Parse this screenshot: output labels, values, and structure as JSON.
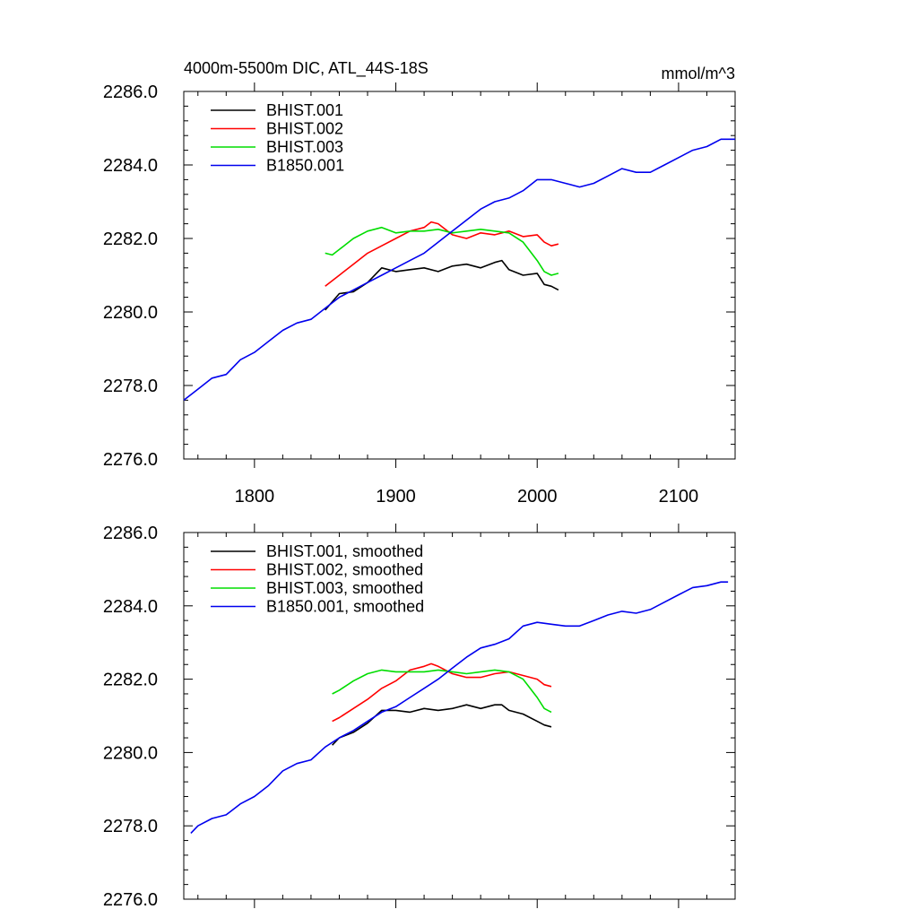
{
  "chart_data": [
    {
      "type": "line",
      "title": "4000m-5500m DIC, ATL_44S-18S",
      "units_label": "mmol/m^3",
      "xlim": [
        1750,
        2140
      ],
      "ylim": [
        2276,
        2286
      ],
      "x_ticks": [
        1800,
        1900,
        2000,
        2100
      ],
      "x_tick_labels": [
        "1800",
        "1900",
        "2000",
        "2100"
      ],
      "y_ticks": [
        2276,
        2278,
        2280,
        2282,
        2284,
        2286
      ],
      "y_tick_labels": [
        "2276.0",
        "2278.0",
        "2280.0",
        "2282.0",
        "2284.0",
        "2286.0"
      ],
      "legend_position": "top-left",
      "series": [
        {
          "name": "BHIST.001",
          "color": "#000000",
          "x": [
            1850,
            1860,
            1870,
            1880,
            1890,
            1900,
            1910,
            1920,
            1930,
            1940,
            1950,
            1960,
            1970,
            1975,
            1980,
            1990,
            2000,
            2005,
            2010,
            2015
          ],
          "values": [
            2280.05,
            2280.5,
            2280.55,
            2280.8,
            2281.2,
            2281.1,
            2281.15,
            2281.2,
            2281.1,
            2281.25,
            2281.3,
            2281.2,
            2281.35,
            2281.4,
            2281.15,
            2281.0,
            2281.05,
            2280.75,
            2280.7,
            2280.6
          ]
        },
        {
          "name": "BHIST.002",
          "color": "#ff0000",
          "x": [
            1850,
            1860,
            1870,
            1880,
            1890,
            1900,
            1910,
            1920,
            1925,
            1930,
            1940,
            1950,
            1960,
            1970,
            1980,
            1990,
            2000,
            2005,
            2010,
            2015
          ],
          "values": [
            2280.7,
            2281.0,
            2281.3,
            2281.6,
            2281.8,
            2282.0,
            2282.2,
            2282.3,
            2282.45,
            2282.4,
            2282.1,
            2282.0,
            2282.15,
            2282.1,
            2282.2,
            2282.05,
            2282.1,
            2281.9,
            2281.8,
            2281.85
          ]
        },
        {
          "name": "BHIST.003",
          "color": "#00dd00",
          "x": [
            1850,
            1855,
            1860,
            1870,
            1880,
            1890,
            1900,
            1910,
            1920,
            1930,
            1940,
            1950,
            1960,
            1970,
            1980,
            1990,
            2000,
            2005,
            2010,
            2015
          ],
          "values": [
            2281.6,
            2281.55,
            2281.7,
            2282.0,
            2282.2,
            2282.3,
            2282.15,
            2282.2,
            2282.2,
            2282.25,
            2282.15,
            2282.2,
            2282.25,
            2282.2,
            2282.15,
            2281.9,
            2281.4,
            2281.1,
            2281.0,
            2281.05
          ]
        },
        {
          "name": "B1850.001",
          "color": "#0000ee",
          "x": [
            1750,
            1760,
            1770,
            1780,
            1790,
            1800,
            1810,
            1820,
            1830,
            1840,
            1850,
            1860,
            1870,
            1880,
            1890,
            1900,
            1910,
            1920,
            1930,
            1940,
            1950,
            1960,
            1970,
            1980,
            1990,
            2000,
            2010,
            2020,
            2030,
            2040,
            2050,
            2060,
            2070,
            2080,
            2090,
            2100,
            2110,
            2120,
            2130,
            2140
          ],
          "values": [
            2277.6,
            2277.9,
            2278.2,
            2278.3,
            2278.7,
            2278.9,
            2279.2,
            2279.5,
            2279.7,
            2279.8,
            2280.1,
            2280.4,
            2280.6,
            2280.8,
            2281.0,
            2281.2,
            2281.4,
            2281.6,
            2281.9,
            2282.2,
            2282.5,
            2282.8,
            2283.0,
            2283.1,
            2283.3,
            2283.6,
            2283.6,
            2283.5,
            2283.4,
            2283.5,
            2283.7,
            2283.9,
            2283.8,
            2283.8,
            2284.0,
            2284.2,
            2284.4,
            2284.5,
            2284.7,
            2284.7
          ]
        }
      ]
    },
    {
      "type": "line",
      "title": "",
      "units_label": "",
      "xlim": [
        1750,
        2140
      ],
      "ylim": [
        2276,
        2286
      ],
      "x_ticks": [
        1800,
        1900,
        2000,
        2100
      ],
      "x_tick_labels": [],
      "y_ticks": [
        2276,
        2278,
        2280,
        2282,
        2284,
        2286
      ],
      "y_tick_labels": [
        "2276.0",
        "2278.0",
        "2280.0",
        "2282.0",
        "2284.0",
        "2286.0"
      ],
      "legend_position": "top-left",
      "series": [
        {
          "name": "BHIST.001, smoothed",
          "color": "#000000",
          "x": [
            1855,
            1860,
            1870,
            1880,
            1890,
            1900,
            1910,
            1920,
            1930,
            1940,
            1950,
            1960,
            1970,
            1975,
            1980,
            1990,
            2000,
            2005,
            2010
          ],
          "values": [
            2280.2,
            2280.4,
            2280.55,
            2280.8,
            2281.15,
            2281.15,
            2281.1,
            2281.2,
            2281.15,
            2281.2,
            2281.3,
            2281.2,
            2281.3,
            2281.3,
            2281.15,
            2281.05,
            2280.85,
            2280.75,
            2280.7
          ]
        },
        {
          "name": "BHIST.002, smoothed",
          "color": "#ff0000",
          "x": [
            1855,
            1860,
            1870,
            1880,
            1890,
            1900,
            1910,
            1920,
            1925,
            1930,
            1940,
            1950,
            1960,
            1970,
            1980,
            1990,
            2000,
            2005,
            2010
          ],
          "values": [
            2280.85,
            2280.95,
            2281.2,
            2281.45,
            2281.75,
            2281.95,
            2282.25,
            2282.35,
            2282.42,
            2282.35,
            2282.15,
            2282.05,
            2282.05,
            2282.15,
            2282.2,
            2282.1,
            2282.0,
            2281.85,
            2281.8
          ]
        },
        {
          "name": "BHIST.003, smoothed",
          "color": "#00dd00",
          "x": [
            1855,
            1860,
            1870,
            1880,
            1890,
            1900,
            1910,
            1920,
            1930,
            1940,
            1950,
            1960,
            1970,
            1980,
            1990,
            2000,
            2005,
            2010
          ],
          "values": [
            2281.6,
            2281.7,
            2281.95,
            2282.15,
            2282.25,
            2282.2,
            2282.2,
            2282.2,
            2282.25,
            2282.2,
            2282.15,
            2282.2,
            2282.25,
            2282.2,
            2282.0,
            2281.5,
            2281.2,
            2281.1
          ]
        },
        {
          "name": "B1850.001, smoothed",
          "color": "#0000ee",
          "x": [
            1755,
            1760,
            1770,
            1780,
            1790,
            1800,
            1810,
            1820,
            1830,
            1840,
            1850,
            1860,
            1870,
            1880,
            1890,
            1900,
            1910,
            1920,
            1930,
            1940,
            1950,
            1960,
            1970,
            1980,
            1990,
            2000,
            2010,
            2020,
            2030,
            2040,
            2050,
            2060,
            2070,
            2080,
            2090,
            2100,
            2110,
            2120,
            2130,
            2135
          ],
          "values": [
            2277.8,
            2278.0,
            2278.2,
            2278.3,
            2278.6,
            2278.8,
            2279.1,
            2279.5,
            2279.7,
            2279.8,
            2280.15,
            2280.4,
            2280.6,
            2280.85,
            2281.1,
            2281.25,
            2281.5,
            2281.75,
            2282.0,
            2282.3,
            2282.6,
            2282.85,
            2282.95,
            2283.1,
            2283.45,
            2283.55,
            2283.5,
            2283.45,
            2283.45,
            2283.6,
            2283.75,
            2283.85,
            2283.8,
            2283.9,
            2284.1,
            2284.3,
            2284.5,
            2284.55,
            2284.65,
            2284.65
          ]
        }
      ]
    }
  ]
}
